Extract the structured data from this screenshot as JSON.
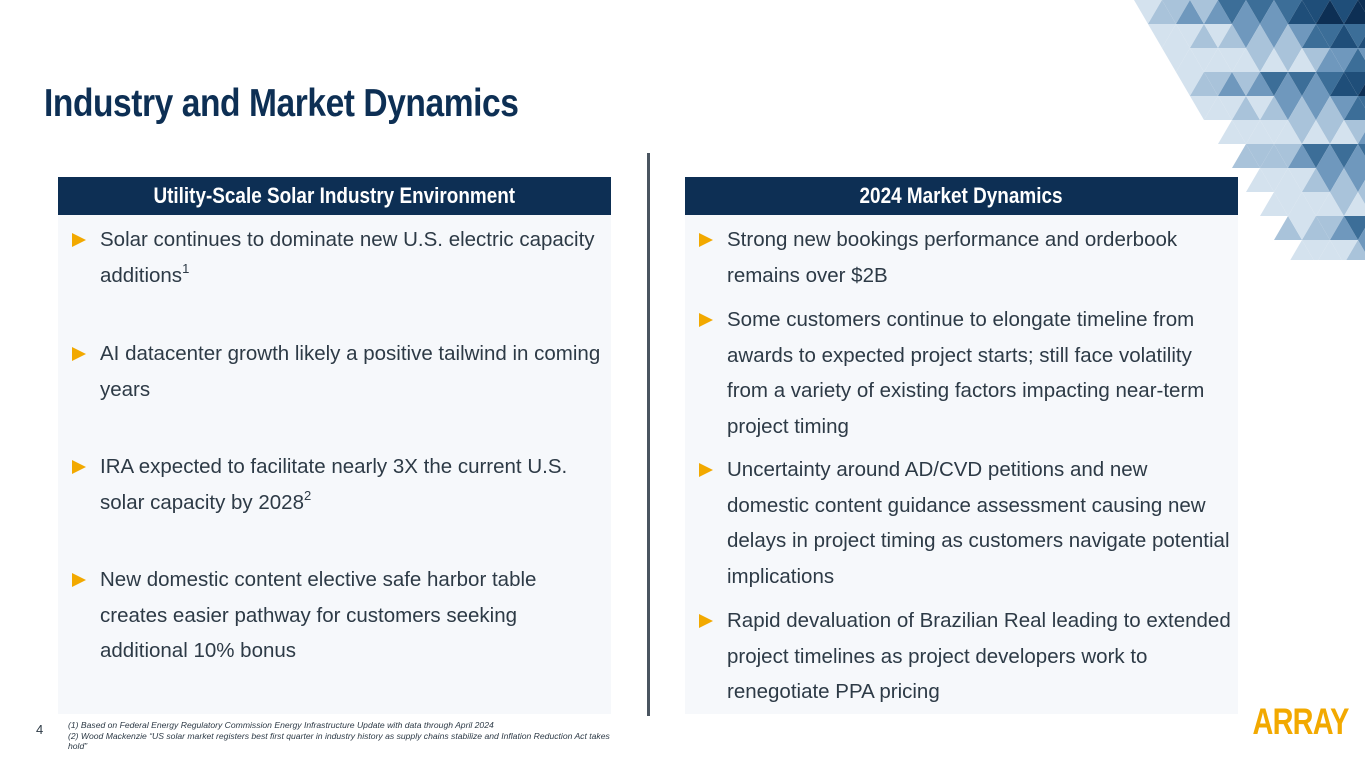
{
  "slide": {
    "title": "Industry and Market Dynamics",
    "page_number": "4"
  },
  "left_panel": {
    "header": "Utility-Scale Solar Industry Environment",
    "bullets": [
      {
        "text": "Solar continues to dominate new U.S. electric capacity additions",
        "sup": "1"
      },
      {
        "text": "AI datacenter growth likely a positive tailwind in coming years",
        "sup": ""
      },
      {
        "text": "IRA expected to facilitate nearly 3X the current U.S. solar capacity by 2028",
        "sup": "2"
      },
      {
        "text": "New domestic content elective safe harbor table creates easier pathway for customers seeking additional 10% bonus",
        "sup": ""
      }
    ]
  },
  "right_panel": {
    "header": "2024 Market Dynamics",
    "bullets": [
      {
        "text": "Strong new bookings performance and orderbook remains over $2B"
      },
      {
        "text": "Some customers continue to elongate timeline from awards to expected project starts; still face volatility from a variety of existing factors impacting near-term project timing"
      },
      {
        "text": "Uncertainty around AD/CVD petitions and new domestic content guidance assessment causing new delays in project timing as customers navigate potential implications"
      },
      {
        "text": "Rapid devaluation of Brazilian Real leading to extended project timelines as project developers work to renegotiate PPA pricing"
      }
    ]
  },
  "footnotes": [
    "(1) Based on Federal Energy Regulatory Commission Energy Infrastructure Update with data through April 2024",
    "(2) Wood Mackenzie “US solar market registers best first quarter in industry history as supply chains stabilize and Inflation Reduction Act takes hold”"
  ],
  "logo_text": "ARRAY",
  "colors": {
    "navy": "#0d2f54",
    "accent_gold": "#f2a900",
    "panel_bg": "#f6f8fb",
    "body_text": "#2d3a46"
  }
}
